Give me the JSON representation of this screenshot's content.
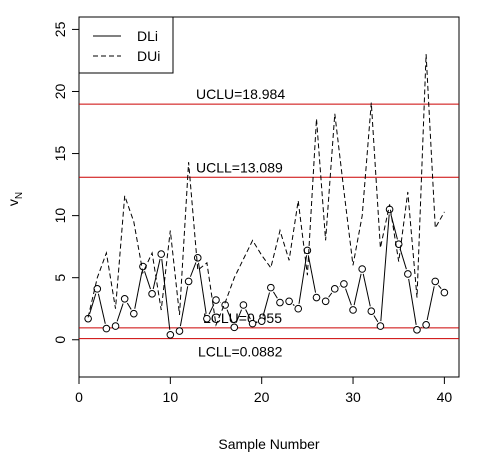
{
  "chart_data": {
    "type": "line",
    "xlabel": "Sample Number",
    "ylabel": "v",
    "ylabel_subscript": "N",
    "xlim": [
      0,
      41.6
    ],
    "ylim": [
      -3,
      26
    ],
    "xticks": [
      0,
      10,
      20,
      30,
      40
    ],
    "yticks": [
      0,
      5,
      10,
      15,
      20,
      25
    ],
    "grid": false,
    "legend_position": "top-left",
    "x": [
      1,
      2,
      3,
      4,
      5,
      6,
      7,
      8,
      9,
      10,
      11,
      12,
      13,
      14,
      15,
      16,
      17,
      18,
      19,
      20,
      21,
      22,
      23,
      24,
      25,
      26,
      27,
      28,
      29,
      30,
      31,
      32,
      33,
      34,
      35,
      36,
      37,
      38,
      39,
      40
    ],
    "series": [
      {
        "name": "DLi",
        "style": "solid",
        "markers": true,
        "values": [
          1.7,
          4.1,
          0.9,
          1.1,
          3.3,
          2.1,
          5.9,
          3.7,
          6.9,
          0.4,
          0.7,
          4.7,
          6.6,
          1.7,
          3.2,
          2.8,
          1.0,
          2.8,
          1.3,
          1.5,
          4.2,
          3.0,
          3.1,
          2.5,
          7.2,
          3.4,
          3.1,
          4.1,
          4.5,
          2.4,
          5.7,
          2.3,
          1.1,
          10.5,
          7.7,
          5.3,
          0.8,
          1.2,
          4.7,
          3.8
        ]
      },
      {
        "name": "DUi",
        "style": "dashed",
        "markers": false,
        "values": [
          1.8,
          5.0,
          7.0,
          2.5,
          11.6,
          9.5,
          5.4,
          7.0,
          2.4,
          8.8,
          2.0,
          14.3,
          5.6,
          6.2,
          1.2,
          3.0,
          5.0,
          6.5,
          8.0,
          6.8,
          5.8,
          8.8,
          6.4,
          11.2,
          5.2,
          17.8,
          8.0,
          18.2,
          12.0,
          6.0,
          10.0,
          19.1,
          7.4,
          10.9,
          6.3,
          11.9,
          3.4,
          23.0,
          9.0,
          10.3
        ]
      }
    ],
    "hlines": [
      {
        "label": "UCLU=18.984",
        "value": 18.984,
        "color": "#cc0000"
      },
      {
        "label": "UCLL=13.089",
        "value": 13.089,
        "color": "#cc0000"
      },
      {
        "label": "LCLU=0.955",
        "value": 0.955,
        "color": "#cc0000"
      },
      {
        "label": "LCLL=0.0882",
        "value": 0.0882,
        "color": "#cc0000"
      }
    ]
  }
}
